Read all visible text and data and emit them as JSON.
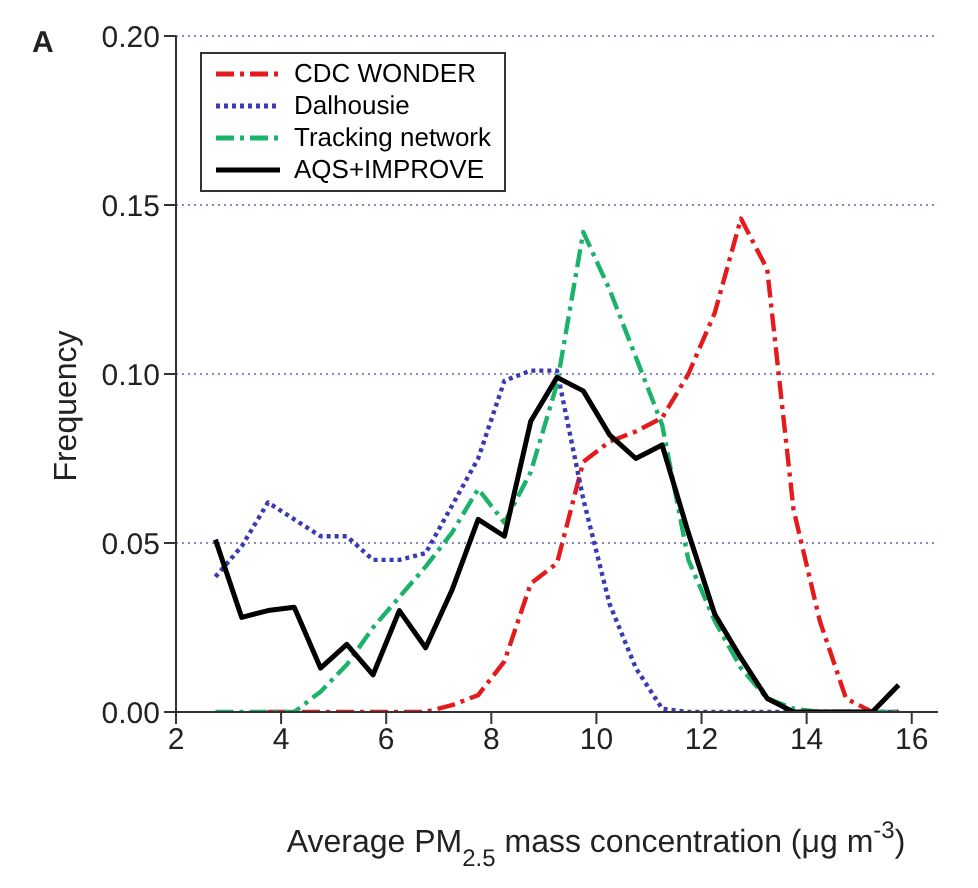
{
  "chart_data": {
    "type": "line",
    "annotations": [
      "A"
    ],
    "xlabel": "Average PM$_{2.5}$ mass concentration (μg m$^{-3}$)",
    "ylabel": "Frequency",
    "x": [
      2.75,
      3.25,
      3.75,
      4.25,
      4.75,
      5.25,
      5.75,
      6.25,
      6.75,
      7.25,
      7.75,
      8.25,
      8.75,
      9.25,
      9.75,
      10.25,
      10.75,
      11.25,
      11.75,
      12.25,
      12.75,
      13.25,
      13.75,
      14.25,
      14.75,
      15.25,
      15.75
    ],
    "series": [
      {
        "name": "CDC WONDER",
        "color": "#e41a1c",
        "line_style": "dashed",
        "values": [
          null,
          null,
          0,
          0,
          0,
          0,
          0,
          0,
          0,
          0.002,
          0.005,
          0.015,
          0.038,
          0.044,
          0.074,
          0.08,
          0.083,
          0.087,
          0.1,
          0.118,
          0.146,
          0.131,
          0.06,
          0.027,
          0.004,
          0,
          0
        ]
      },
      {
        "name": "Dalhousie",
        "color": "#3a3ab4",
        "line_style": "dotted",
        "values": [
          0.04,
          0.049,
          0.062,
          0.057,
          0.052,
          0.052,
          0.045,
          0.045,
          0.047,
          0.061,
          0.075,
          0.098,
          0.101,
          0.101,
          0.063,
          0.032,
          0.013,
          0.001,
          0,
          0,
          0,
          0,
          0,
          0,
          0,
          0,
          0
        ]
      },
      {
        "name": "Tracking network",
        "color": "#1bb36a",
        "line_style": "dashed",
        "values": [
          0,
          0,
          0,
          0,
          0.006,
          0.014,
          0.025,
          0.034,
          0.043,
          0.053,
          0.066,
          0.056,
          0.071,
          0.097,
          0.142,
          0.125,
          0.105,
          0.085,
          0.045,
          0.027,
          0.013,
          0.004,
          0.001,
          0,
          0,
          0,
          0
        ]
      },
      {
        "name": "AQS+IMPROVE",
        "color": "#000000",
        "line_style": "solid",
        "values": [
          0.051,
          0.028,
          0.03,
          0.031,
          0.013,
          0.02,
          0.011,
          0.03,
          0.019,
          0.036,
          0.057,
          0.052,
          0.086,
          0.099,
          0.095,
          0.082,
          0.075,
          0.079,
          0.053,
          0.029,
          0.016,
          0.004,
          0,
          0,
          0,
          0,
          0.008
        ]
      }
    ],
    "xlim": [
      2,
      16.5
    ],
    "xticks": [
      2,
      4,
      6,
      8,
      10,
      12,
      14,
      16
    ],
    "ylim": [
      0,
      0.2
    ],
    "yticks": [
      {
        "value": 0,
        "label": "0.00"
      },
      {
        "value": 0.05,
        "label": "0.05"
      },
      {
        "value": 0.1,
        "label": "0.10"
      },
      {
        "value": 0.15,
        "label": "0.15"
      },
      {
        "value": 0.2,
        "label": "0.20"
      }
    ],
    "grid": "y",
    "legend": "top left",
    "marker": "none"
  }
}
